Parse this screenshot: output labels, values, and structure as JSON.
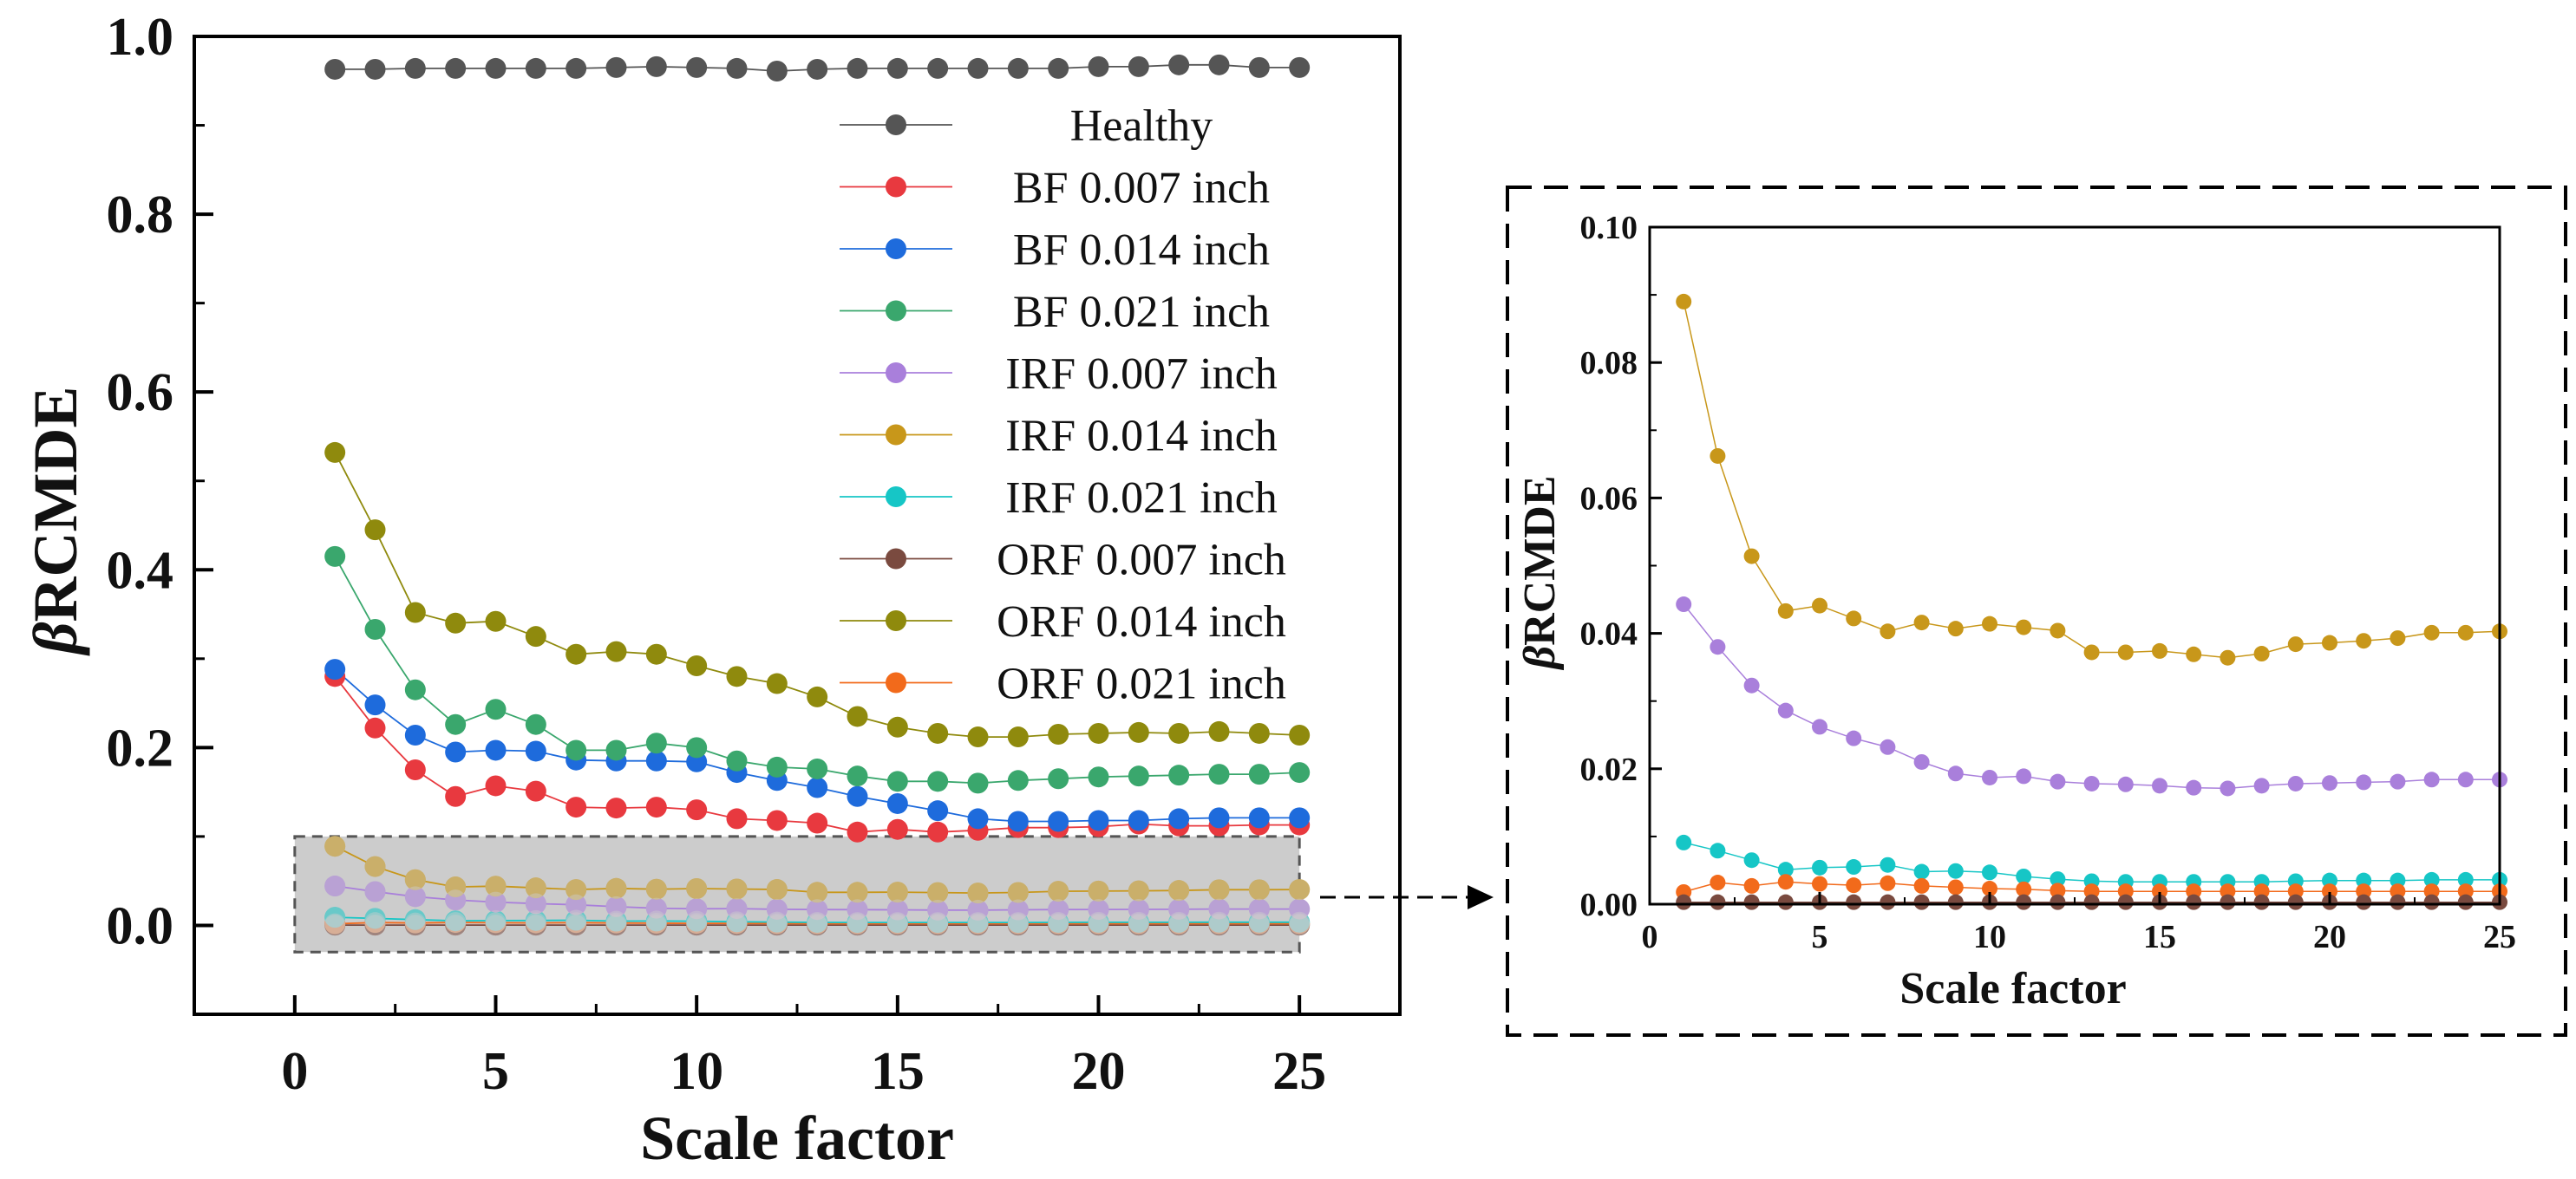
{
  "chart_data": [
    {
      "type": "line",
      "title": "",
      "xlabel": "Scale factor",
      "ylabel_symbol": "β",
      "ylabel_text": "RCMDE",
      "xlim": [
        -2.5,
        27.5
      ],
      "ylim": [
        -0.1,
        1.0
      ],
      "xticks": [
        "0",
        "5",
        "10",
        "15",
        "20",
        "25"
      ],
      "yticks": [
        "0.0",
        "0.2",
        "0.4",
        "0.6",
        "0.8",
        "1.0"
      ],
      "legend_position": "top-right",
      "highlight_region": {
        "x": [
          0,
          25
        ],
        "y": [
          -0.03,
          0.1
        ]
      },
      "x": [
        1,
        2,
        3,
        4,
        5,
        6,
        7,
        8,
        9,
        10,
        11,
        12,
        13,
        14,
        15,
        16,
        17,
        18,
        19,
        20,
        21,
        22,
        23,
        24,
        25
      ],
      "series": [
        {
          "name": "Healthy",
          "color": "#555555",
          "values": [
            0.963,
            0.963,
            0.964,
            0.964,
            0.964,
            0.964,
            0.964,
            0.965,
            0.966,
            0.965,
            0.964,
            0.961,
            0.963,
            0.964,
            0.964,
            0.964,
            0.964,
            0.964,
            0.964,
            0.966,
            0.966,
            0.968,
            0.968,
            0.965,
            0.965
          ]
        },
        {
          "name": "BF 0.007 inch",
          "color": "#e8393f",
          "values": [
            0.28,
            0.222,
            0.175,
            0.145,
            0.157,
            0.151,
            0.133,
            0.132,
            0.133,
            0.13,
            0.12,
            0.118,
            0.115,
            0.105,
            0.108,
            0.105,
            0.107,
            0.11,
            0.11,
            0.111,
            0.114,
            0.112,
            0.112,
            0.113,
            0.113
          ]
        },
        {
          "name": "BF 0.014 inch",
          "color": "#1e6bdc",
          "values": [
            0.288,
            0.248,
            0.214,
            0.195,
            0.197,
            0.196,
            0.186,
            0.185,
            0.185,
            0.184,
            0.172,
            0.163,
            0.155,
            0.145,
            0.137,
            0.129,
            0.12,
            0.117,
            0.117,
            0.118,
            0.118,
            0.12,
            0.121,
            0.121,
            0.121
          ]
        },
        {
          "name": "BF 0.021 inch",
          "color": "#3aa76d",
          "values": [
            0.415,
            0.333,
            0.265,
            0.226,
            0.243,
            0.226,
            0.197,
            0.197,
            0.205,
            0.2,
            0.185,
            0.178,
            0.176,
            0.168,
            0.162,
            0.162,
            0.16,
            0.163,
            0.165,
            0.167,
            0.168,
            0.169,
            0.17,
            0.17,
            0.172
          ]
        },
        {
          "name": "IRF 0.007 inch",
          "color": "#a97fdb",
          "values": [
            0.0443,
            0.038,
            0.0323,
            0.0286,
            0.0262,
            0.0245,
            0.0232,
            0.021,
            0.0193,
            0.0187,
            0.0189,
            0.0181,
            0.0178,
            0.0177,
            0.0175,
            0.0172,
            0.0171,
            0.0175,
            0.0178,
            0.0179,
            0.018,
            0.0181,
            0.0184,
            0.0184,
            0.0184
          ]
        },
        {
          "name": "IRF 0.014 inch",
          "color": "#c8971a",
          "values": [
            0.089,
            0.0662,
            0.0514,
            0.0433,
            0.0441,
            0.0422,
            0.0403,
            0.0416,
            0.0407,
            0.0414,
            0.0409,
            0.0404,
            0.0372,
            0.0372,
            0.0374,
            0.0369,
            0.0364,
            0.037,
            0.0384,
            0.0386,
            0.0389,
            0.0393,
            0.0401,
            0.0401,
            0.0403
          ]
        },
        {
          "name": "IRF 0.021 inch",
          "color": "#16c6c6",
          "values": [
            0.0091,
            0.0079,
            0.0065,
            0.0051,
            0.0054,
            0.0055,
            0.0058,
            0.0048,
            0.0049,
            0.0047,
            0.0041,
            0.0037,
            0.0034,
            0.0033,
            0.0033,
            0.0033,
            0.0033,
            0.0033,
            0.0034,
            0.0035,
            0.0035,
            0.0035,
            0.0036,
            0.0036,
            0.0036
          ]
        },
        {
          "name": "ORF 0.007 inch",
          "color": "#7a4a3f",
          "values": [
            0.0003,
            0.0003,
            0.0003,
            0.0003,
            0.0003,
            0.0003,
            0.0003,
            0.0003,
            0.0003,
            0.0003,
            0.0003,
            0.0003,
            0.0003,
            0.0003,
            0.0003,
            0.0003,
            0.0003,
            0.0003,
            0.0003,
            0.0003,
            0.0003,
            0.0003,
            0.0003,
            0.0003,
            0.0003
          ]
        },
        {
          "name": "ORF 0.014 inch",
          "color": "#8f8a0d",
          "values": [
            0.532,
            0.445,
            0.352,
            0.34,
            0.342,
            0.325,
            0.305,
            0.308,
            0.305,
            0.292,
            0.28,
            0.272,
            0.257,
            0.235,
            0.223,
            0.216,
            0.212,
            0.212,
            0.215,
            0.216,
            0.217,
            0.216,
            0.218,
            0.216,
            0.214
          ]
        },
        {
          "name": "ORF 0.021 inch",
          "color": "#f26a1b",
          "values": [
            0.0018,
            0.0032,
            0.0027,
            0.0033,
            0.003,
            0.0028,
            0.0031,
            0.0027,
            0.0025,
            0.0023,
            0.0022,
            0.002,
            0.0019,
            0.0019,
            0.0019,
            0.0019,
            0.0019,
            0.0019,
            0.0019,
            0.0019,
            0.0019,
            0.0019,
            0.0019,
            0.0019,
            0.0019
          ]
        }
      ]
    },
    {
      "type": "line",
      "title": "",
      "xlabel": "Scale factor",
      "ylabel_symbol": "β",
      "ylabel_text": "RCMDE",
      "xlim": [
        0,
        25
      ],
      "ylim": [
        0,
        0.1
      ],
      "xticks": [
        "0",
        "5",
        "10",
        "15",
        "20",
        "25"
      ],
      "yticks": [
        "0.00",
        "0.02",
        "0.04",
        "0.06",
        "0.08",
        "0.10"
      ],
      "series_names": [
        "IRF 0.014 inch",
        "IRF 0.007 inch",
        "IRF 0.021 inch",
        "ORF 0.021 inch",
        "ORF 0.007 inch"
      ]
    }
  ]
}
